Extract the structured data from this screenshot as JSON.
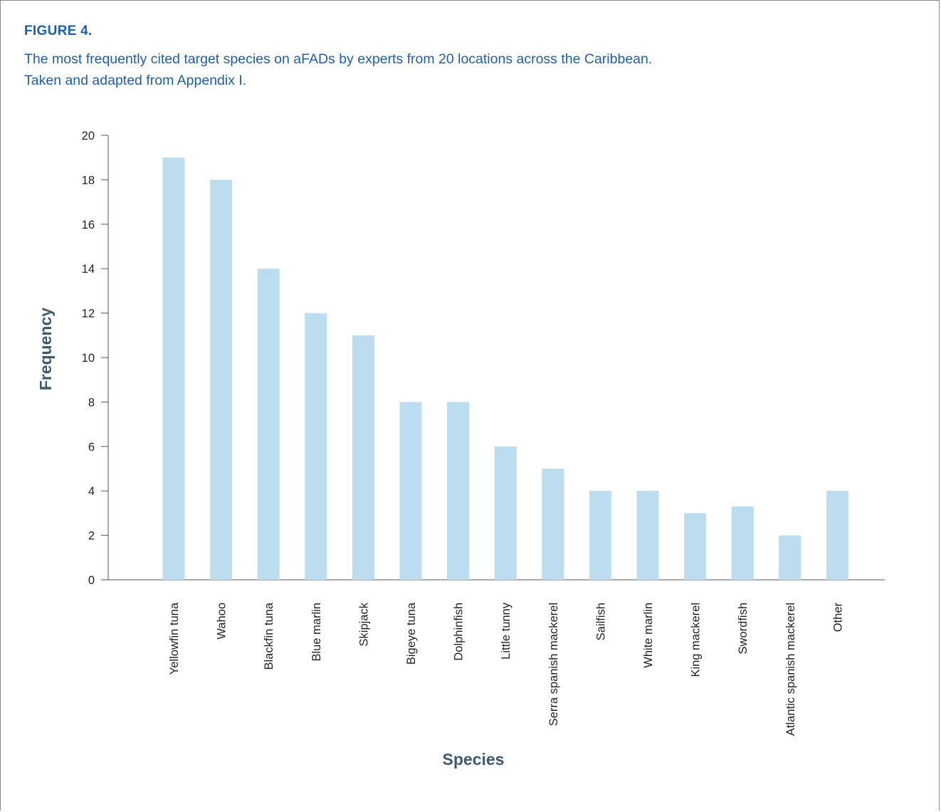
{
  "figure": {
    "label": "FIGURE 4.",
    "caption_line1": "The most frequently cited target species on aFADs by experts from 20 locations across the Caribbean.",
    "caption_line2": "Taken and adapted from Appendix I."
  },
  "chart_data": {
    "type": "bar",
    "categories": [
      "Yellowfin tuna",
      "Wahoo",
      "Blackfin tuna",
      "Blue marlin",
      "Skipjack",
      "Bigeye tuna",
      "Dolphinfish",
      "Little tunny",
      "Serra spanish mackerel",
      "Sailfish",
      "White marlin",
      "King mackerel",
      "Swordfish",
      "Atlantic spanish mackerel",
      "Other"
    ],
    "values": [
      19,
      18,
      14,
      12,
      11,
      8,
      8,
      6,
      5,
      4,
      4,
      3,
      3.3,
      2,
      4
    ],
    "xlabel": "Species",
    "ylabel": "Frequency",
    "ylim": [
      0,
      20
    ],
    "yticks": [
      0,
      2,
      4,
      6,
      8,
      10,
      12,
      14,
      16,
      18,
      20
    ],
    "bar_color": "#bcdcef",
    "axis_color": "#555555",
    "legend": "none",
    "grid": false
  }
}
